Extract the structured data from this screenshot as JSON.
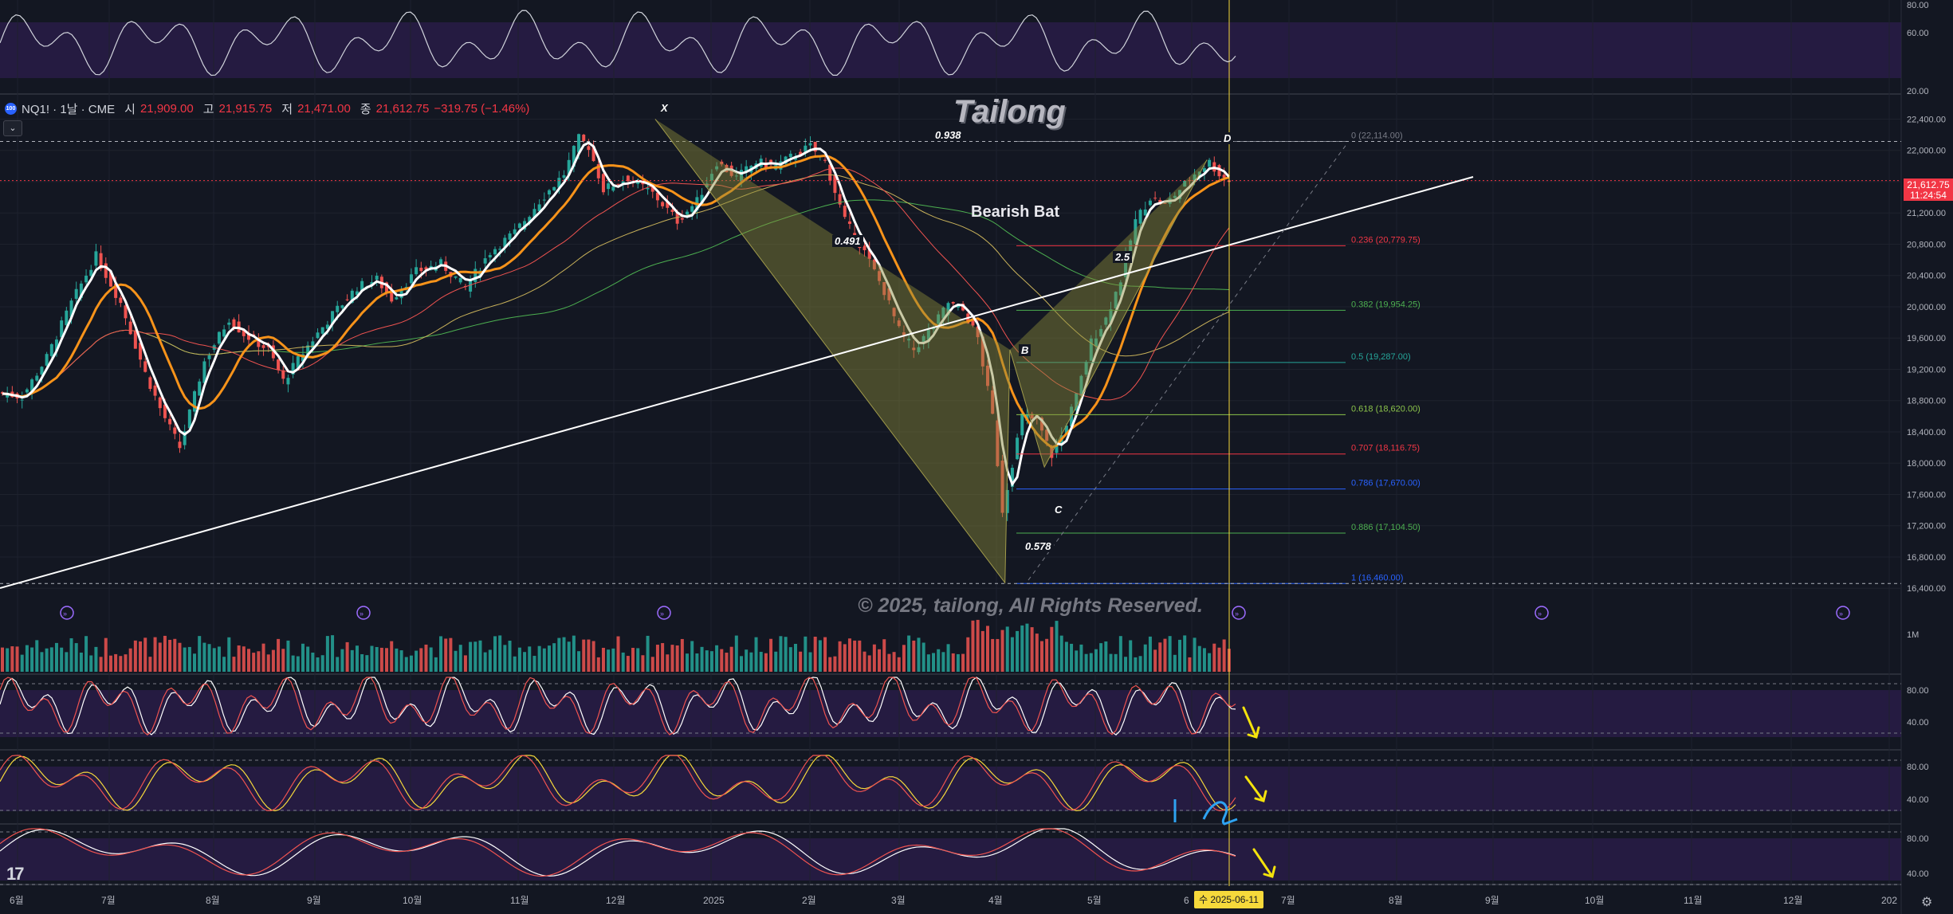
{
  "header": {
    "logo": "100",
    "symbol": "NQ1! · 1날 · CME",
    "open_label": "시",
    "open": "21,909.00",
    "high_label": "고",
    "high": "21,915.75",
    "low_label": "저",
    "low": "21,471.00",
    "close_label": "종",
    "close": "21,612.75",
    "change": "−319.75 (−1.46%)",
    "collapse_icon": "chevron-down-icon"
  },
  "title": "Tailong",
  "pattern_name": "Bearish Bat",
  "copyright": "© 2025, tailong, All Rights Reserved.",
  "pattern_points": {
    "x": "X",
    "a": "0.938",
    "b": "B",
    "c": "C",
    "d": "D",
    "xb": "0.491",
    "ac": "0.578",
    "bd": "2.5"
  },
  "price_tag": {
    "price": "21,612.75",
    "countdown": "11:24:54"
  },
  "date_tag": "수 2025-06-11",
  "colors": {
    "background": "#131722",
    "up": "#26a69a",
    "down": "#ef5350",
    "ema_fast": "#ffffff",
    "ema_slow": "#f7931a",
    "pattern_fill": "#8a8a3a",
    "trendline": "#ffffff",
    "annotation": "#f4e30c",
    "annotation_blue": "#2ea3f2",
    "osc_bg": "#2a1d4a"
  },
  "chart_data": {
    "type": "candlestick",
    "x_tick_labels": [
      "6월",
      "7월",
      "8월",
      "9월",
      "10월",
      "11월",
      "12월",
      "2025",
      "2월",
      "3월",
      "4월",
      "5월",
      "6",
      "7월",
      "8월",
      "9월",
      "10월",
      "11월",
      "12월",
      "202"
    ],
    "price_axis": {
      "ticks": [
        "22,400.00",
        "22,000.00",
        "21,600.00",
        "21,200.00",
        "20,800.00",
        "20,400.00",
        "20,000.00",
        "19,600.00",
        "19,200.00",
        "18,800.00",
        "18,400.00",
        "18,000.00",
        "17,600.00",
        "17,200.00",
        "16,800.00",
        "16,400.00"
      ],
      "range": [
        16300,
        22700
      ]
    },
    "price_path": [
      [
        0,
        18900
      ],
      [
        5,
        18850
      ],
      [
        10,
        19350
      ],
      [
        15,
        20050
      ],
      [
        20,
        20650
      ],
      [
        25,
        20050
      ],
      [
        30,
        19150
      ],
      [
        33,
        18700
      ],
      [
        37,
        18200
      ],
      [
        42,
        19300
      ],
      [
        47,
        19850
      ],
      [
        50,
        19650
      ],
      [
        55,
        19450
      ],
      [
        58,
        19050
      ],
      [
        63,
        19500
      ],
      [
        68,
        19900
      ],
      [
        73,
        20250
      ],
      [
        77,
        20350
      ],
      [
        80,
        20100
      ],
      [
        85,
        20450
      ],
      [
        90,
        20550
      ],
      [
        95,
        20250
      ],
      [
        100,
        20700
      ],
      [
        105,
        20950
      ],
      [
        110,
        21350
      ],
      [
        115,
        21700
      ],
      [
        118,
        22150
      ],
      [
        120,
        22050
      ],
      [
        123,
        21500
      ],
      [
        128,
        21650
      ],
      [
        133,
        21450
      ],
      [
        138,
        21100
      ],
      [
        142,
        21350
      ],
      [
        146,
        21850
      ],
      [
        150,
        21650
      ],
      [
        154,
        21850
      ],
      [
        158,
        21800
      ],
      [
        162,
        21950
      ],
      [
        165,
        22050
      ],
      [
        168,
        21850
      ],
      [
        172,
        21100
      ],
      [
        176,
        20700
      ],
      [
        180,
        20200
      ],
      [
        183,
        19700
      ],
      [
        186,
        19450
      ],
      [
        190,
        19750
      ],
      [
        193,
        20050
      ],
      [
        196,
        19950
      ],
      [
        199,
        19600
      ],
      [
        202,
        18600
      ],
      [
        204,
        17400
      ],
      [
        206,
        18000
      ],
      [
        208,
        18600
      ],
      [
        211,
        18550
      ],
      [
        214,
        18100
      ],
      [
        216,
        18350
      ],
      [
        219,
        18850
      ],
      [
        222,
        19550
      ],
      [
        225,
        19850
      ],
      [
        228,
        20350
      ],
      [
        231,
        21100
      ],
      [
        234,
        21400
      ],
      [
        237,
        21300
      ],
      [
        240,
        21500
      ],
      [
        243,
        21700
      ],
      [
        246,
        21850
      ],
      [
        248,
        21700
      ],
      [
        250,
        21613
      ]
    ],
    "fib_levels": [
      {
        "label": "0 (22,114.00)",
        "value": 22114,
        "color": "#787b86"
      },
      {
        "label": "0.236 (20,779.75)",
        "value": 20779.75,
        "color": "#f23645"
      },
      {
        "label": "0.382 (19,954.25)",
        "value": 19954.25,
        "color": "#4caf50"
      },
      {
        "label": "0.5 (19,287.00)",
        "value": 19287,
        "color": "#26a69a"
      },
      {
        "label": "0.618 (18,620.00)",
        "value": 18620,
        "color": "#8bc34a"
      },
      {
        "label": "0.707 (18,116.75)",
        "value": 18116.75,
        "color": "#f23645"
      },
      {
        "label": "0.786 (17,670.00)",
        "value": 17670,
        "color": "#2962ff"
      },
      {
        "label": "0.886 (17,104.50)",
        "value": 17104.5,
        "color": "#4caf50"
      },
      {
        "label": "1 (16,460.00)",
        "value": 16460,
        "color": "#2962ff"
      }
    ],
    "pattern": {
      "X": [
        133,
        22400
      ],
      "A": [
        204,
        16470
      ],
      "B": [
        205,
        19450
      ],
      "C": [
        212,
        17950
      ],
      "D": [
        245,
        21880
      ]
    },
    "volume_axis": [
      "1M"
    ],
    "oscillator_axis": [
      "80.00",
      "40.00"
    ],
    "top_oscillator_axis": [
      "80.00",
      "60.00",
      "20.00"
    ]
  }
}
